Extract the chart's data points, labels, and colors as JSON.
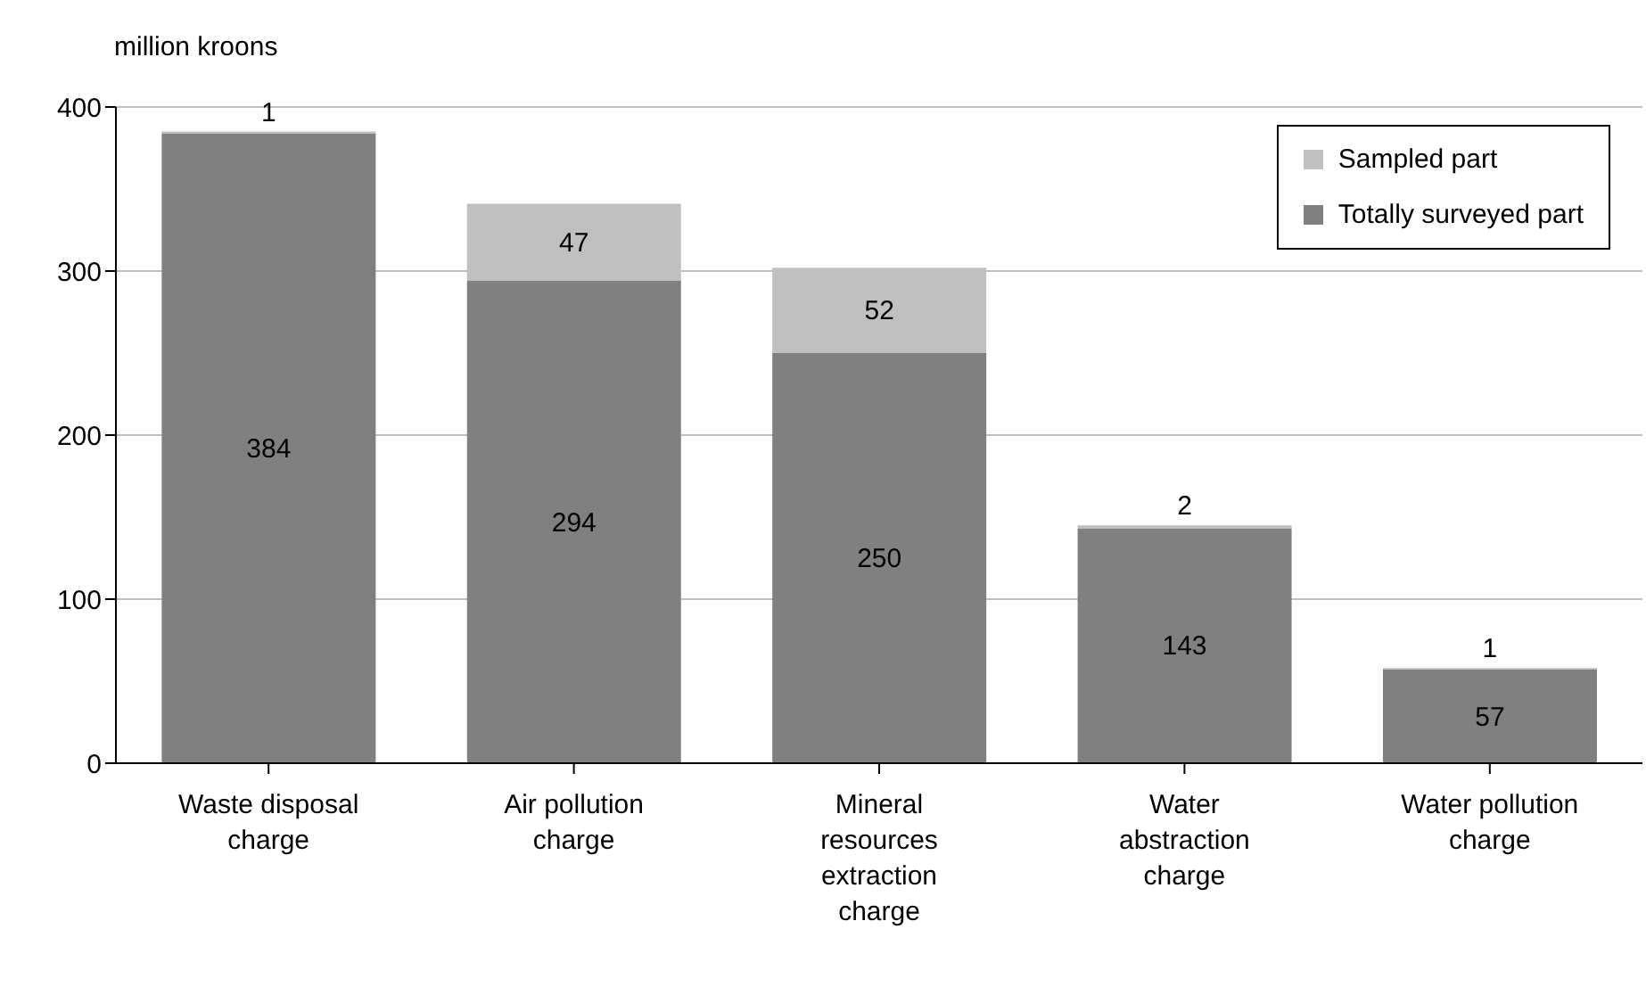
{
  "chart_data": {
    "type": "bar",
    "stacked": true,
    "ylabel": "million kroons",
    "categories": [
      "Waste disposal charge",
      "Air pollution charge",
      "Mineral resources extraction charge",
      "Water abstraction charge",
      "Water pollution charge"
    ],
    "series": [
      {
        "name": "Totally surveyed part",
        "color": "#808080",
        "values": [
          384,
          294,
          250,
          143,
          57
        ]
      },
      {
        "name": "Sampled part",
        "color": "#c0c0c0",
        "values": [
          1,
          47,
          52,
          2,
          1
        ]
      }
    ],
    "ylim": [
      0,
      400
    ],
    "yticks": [
      0,
      100,
      200,
      300,
      400
    ],
    "grid": "y",
    "legend": "top right",
    "data_labels": true
  }
}
